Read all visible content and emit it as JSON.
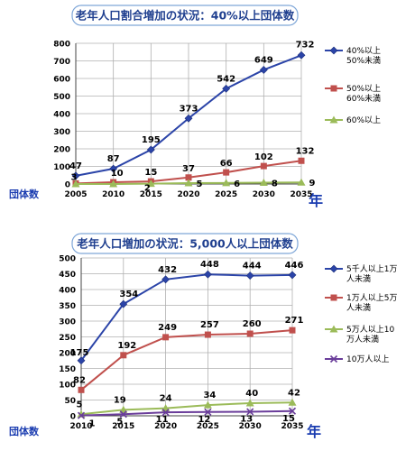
{
  "chart_data": [
    {
      "type": "line",
      "title": "老年人口割合増加の状況：40%以上団体数",
      "xlabel": "年",
      "ylabel": "団体数",
      "x": [
        "2005",
        "2010",
        "2015",
        "2020",
        "2025",
        "2030",
        "2035"
      ],
      "ylim": [
        0,
        800
      ],
      "yticks": [
        0,
        100,
        200,
        300,
        400,
        500,
        600,
        700,
        800
      ],
      "grid": true,
      "legend": "right",
      "series": [
        {
          "name": "40%以上\n50%未満",
          "color": "#2b44a8",
          "marker": "diamond",
          "values": [
            47,
            87,
            195,
            373,
            542,
            649,
            732
          ]
        },
        {
          "name": "50%以上\n60%未満",
          "color": "#c0504d",
          "marker": "square",
          "values": [
            3,
            10,
            15,
            37,
            66,
            102,
            132
          ]
        },
        {
          "name": "60%以上",
          "color": "#9bbb59",
          "marker": "triangle",
          "values": [
            0,
            0,
            2,
            5,
            6,
            8,
            9
          ]
        }
      ],
      "data_labels": [
        [
          "47",
          "87",
          "195",
          "373",
          "542",
          "649",
          "732"
        ],
        [
          "3",
          "10",
          "15",
          "37",
          "66",
          "102",
          "132"
        ],
        [
          "",
          "",
          "2",
          "5",
          "6",
          "8",
          "9"
        ]
      ]
    },
    {
      "type": "line",
      "title": "老年人口増加の状況：5,000人以上団体数",
      "xlabel": "年",
      "ylabel": "団体数",
      "x": [
        "2010",
        "2015",
        "2020",
        "2025",
        "2030",
        "2035"
      ],
      "ylim": [
        0,
        500
      ],
      "yticks": [
        0,
        50,
        100,
        150,
        200,
        250,
        300,
        350,
        400,
        450,
        500
      ],
      "grid": true,
      "legend": "right",
      "series": [
        {
          "name": "5千人以上1万\n人未満",
          "color": "#2b44a8",
          "marker": "diamond",
          "values": [
            175,
            354,
            432,
            448,
            444,
            446
          ]
        },
        {
          "name": "1万人以上5万\n人未満",
          "color": "#c0504d",
          "marker": "square",
          "values": [
            82,
            192,
            249,
            257,
            260,
            271
          ]
        },
        {
          "name": "5万人以上10\n万人未満",
          "color": "#9bbb59",
          "marker": "triangle",
          "values": [
            5,
            19,
            24,
            34,
            40,
            42
          ]
        },
        {
          "name": "10万人以上",
          "color": "#6a3d9a",
          "marker": "x",
          "values": [
            1,
            5,
            11,
            12,
            13,
            15
          ]
        }
      ],
      "data_labels": [
        [
          "175",
          "354",
          "432",
          "448",
          "444",
          "446"
        ],
        [
          "82",
          "192",
          "249",
          "257",
          "260",
          "271"
        ],
        [
          "5",
          "19",
          "24",
          "34",
          "40",
          "42"
        ],
        [
          "1",
          "5",
          "11",
          "12",
          "13",
          "15"
        ]
      ]
    }
  ]
}
